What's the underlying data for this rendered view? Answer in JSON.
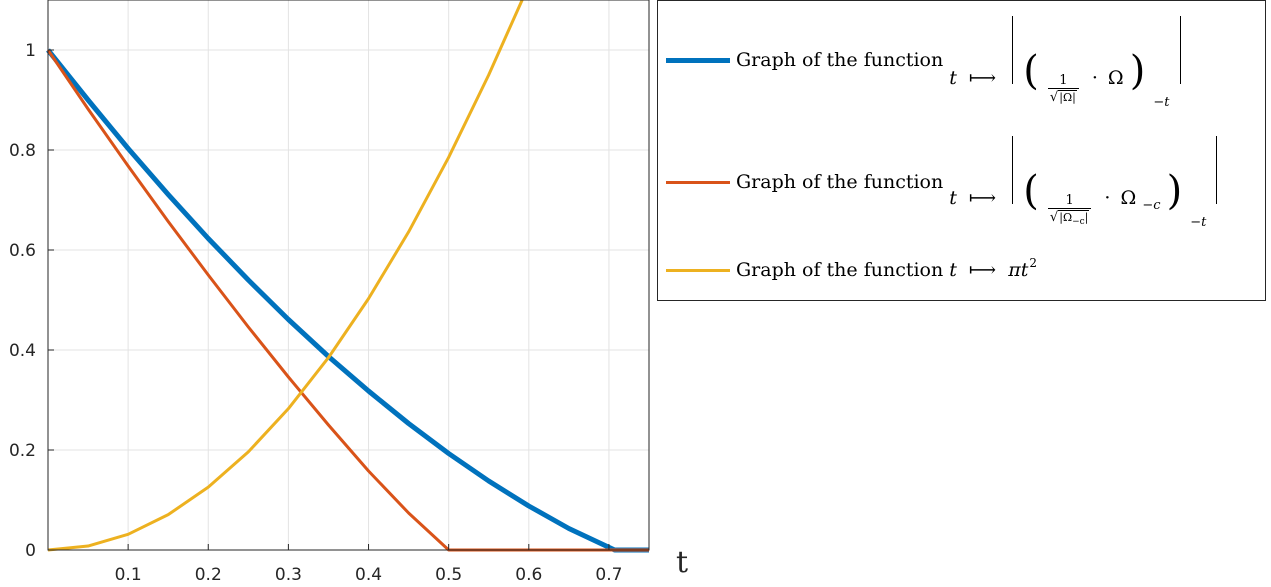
{
  "chart_data": {
    "type": "line",
    "title": "",
    "xlabel": "t",
    "ylabel": "",
    "xlim": [
      0,
      0.75
    ],
    "ylim": [
      0,
      1.1
    ],
    "xticks": [
      0.1,
      0.2,
      0.3,
      0.4,
      0.5,
      0.6,
      0.7
    ],
    "yticks": [
      0,
      0.2,
      0.4,
      0.6,
      0.8,
      1
    ],
    "xtick_labels": [
      "0.1",
      "0.2",
      "0.3",
      "0.4",
      "0.5",
      "0.6",
      "0.7"
    ],
    "ytick_labels": [
      "0",
      "0.2",
      "0.4",
      "0.6",
      "0.8",
      "1"
    ],
    "grid": true,
    "legend_position": "outside-top-right",
    "series": [
      {
        "name": "Graph of the function t ⟼ |((1/√|Ω|) · Ω)₋ₜ|",
        "color": "#0072BD",
        "x": [
          0,
          0.05,
          0.1,
          0.15,
          0.2,
          0.25,
          0.3,
          0.35,
          0.4,
          0.45,
          0.5,
          0.55,
          0.6,
          0.65,
          0.7071,
          0.75
        ],
        "y": [
          1,
          0.9,
          0.803,
          0.711,
          0.623,
          0.54,
          0.461,
          0.387,
          0.318,
          0.253,
          0.193,
          0.138,
          0.088,
          0.043,
          0,
          0
        ]
      },
      {
        "name": "Graph of the function t ⟼ |((1/√|Ω₋c|) · Ω₋c)₋ₜ|",
        "color": "#D95319",
        "x": [
          0,
          0.05,
          0.1,
          0.15,
          0.2,
          0.25,
          0.3,
          0.35,
          0.4,
          0.45,
          0.5,
          0.55,
          0.6,
          0.65,
          0.7,
          0.75
        ],
        "y": [
          1,
          0.882,
          0.768,
          0.657,
          0.55,
          0.446,
          0.346,
          0.25,
          0.158,
          0.074,
          0,
          0,
          0,
          0,
          0,
          0
        ]
      },
      {
        "name": "Graph of the function t ⟼ πt²",
        "color": "#EDB120",
        "x": [
          0,
          0.05,
          0.1,
          0.15,
          0.2,
          0.25,
          0.3,
          0.35,
          0.4,
          0.45,
          0.5,
          0.55,
          0.5917
        ],
        "y": [
          0,
          0.0079,
          0.0314,
          0.0707,
          0.1257,
          0.1963,
          0.2827,
          0.3848,
          0.5027,
          0.6362,
          0.7854,
          0.9503,
          1.1
        ]
      }
    ]
  },
  "legend": {
    "prefix": "Graph of the function",
    "var": "t",
    "maps_to": "⟼",
    "numerator": "1",
    "omega": "Ω",
    "omega_c": "Ω",
    "sub_c": "−c",
    "sub_t": "−t",
    "dot": "·",
    "pi_t": "πt",
    "sq": "2"
  }
}
